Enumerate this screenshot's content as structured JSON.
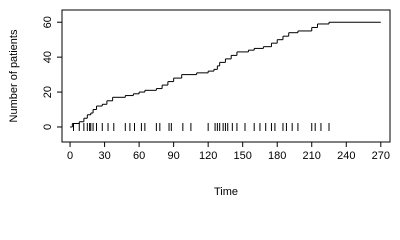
{
  "chart_data": {
    "type": "step",
    "step": "post",
    "x_label": "Time",
    "y_label": "Number of patients",
    "x": [
      0,
      2,
      8,
      12,
      15,
      18,
      20,
      23,
      28,
      32,
      37,
      48,
      55,
      60,
      65,
      75,
      80,
      85,
      90,
      97,
      110,
      120,
      125,
      128,
      130,
      135,
      140,
      145,
      155,
      160,
      168,
      175,
      180,
      185,
      190,
      198,
      210,
      215,
      225,
      270
    ],
    "values": [
      0,
      2,
      3,
      5,
      7,
      8,
      10,
      12,
      13,
      15,
      17,
      18,
      19,
      20,
      21,
      22,
      24,
      26,
      28,
      30,
      31,
      32,
      33,
      35,
      37,
      39,
      41,
      43,
      44,
      45,
      46,
      48,
      50,
      52,
      54,
      55,
      57,
      59,
      60,
      60
    ],
    "color": "#000000",
    "rug": [
      3,
      8,
      12,
      15,
      17,
      18,
      20,
      23,
      28,
      33,
      38,
      48,
      52,
      56,
      62,
      65,
      75,
      78,
      86,
      88,
      98,
      105,
      120,
      126,
      128,
      130,
      133,
      135,
      137,
      141,
      145,
      152,
      160,
      165,
      170,
      175,
      178,
      185,
      188,
      193,
      198,
      210,
      213,
      218,
      225
    ],
    "xlim": [
      -7,
      278
    ],
    "ylim": [
      -8.6,
      67
    ],
    "xticks": [
      0,
      30,
      60,
      90,
      120,
      150,
      180,
      210,
      240,
      270
    ],
    "yticks": [
      0,
      20,
      40,
      60
    ]
  }
}
